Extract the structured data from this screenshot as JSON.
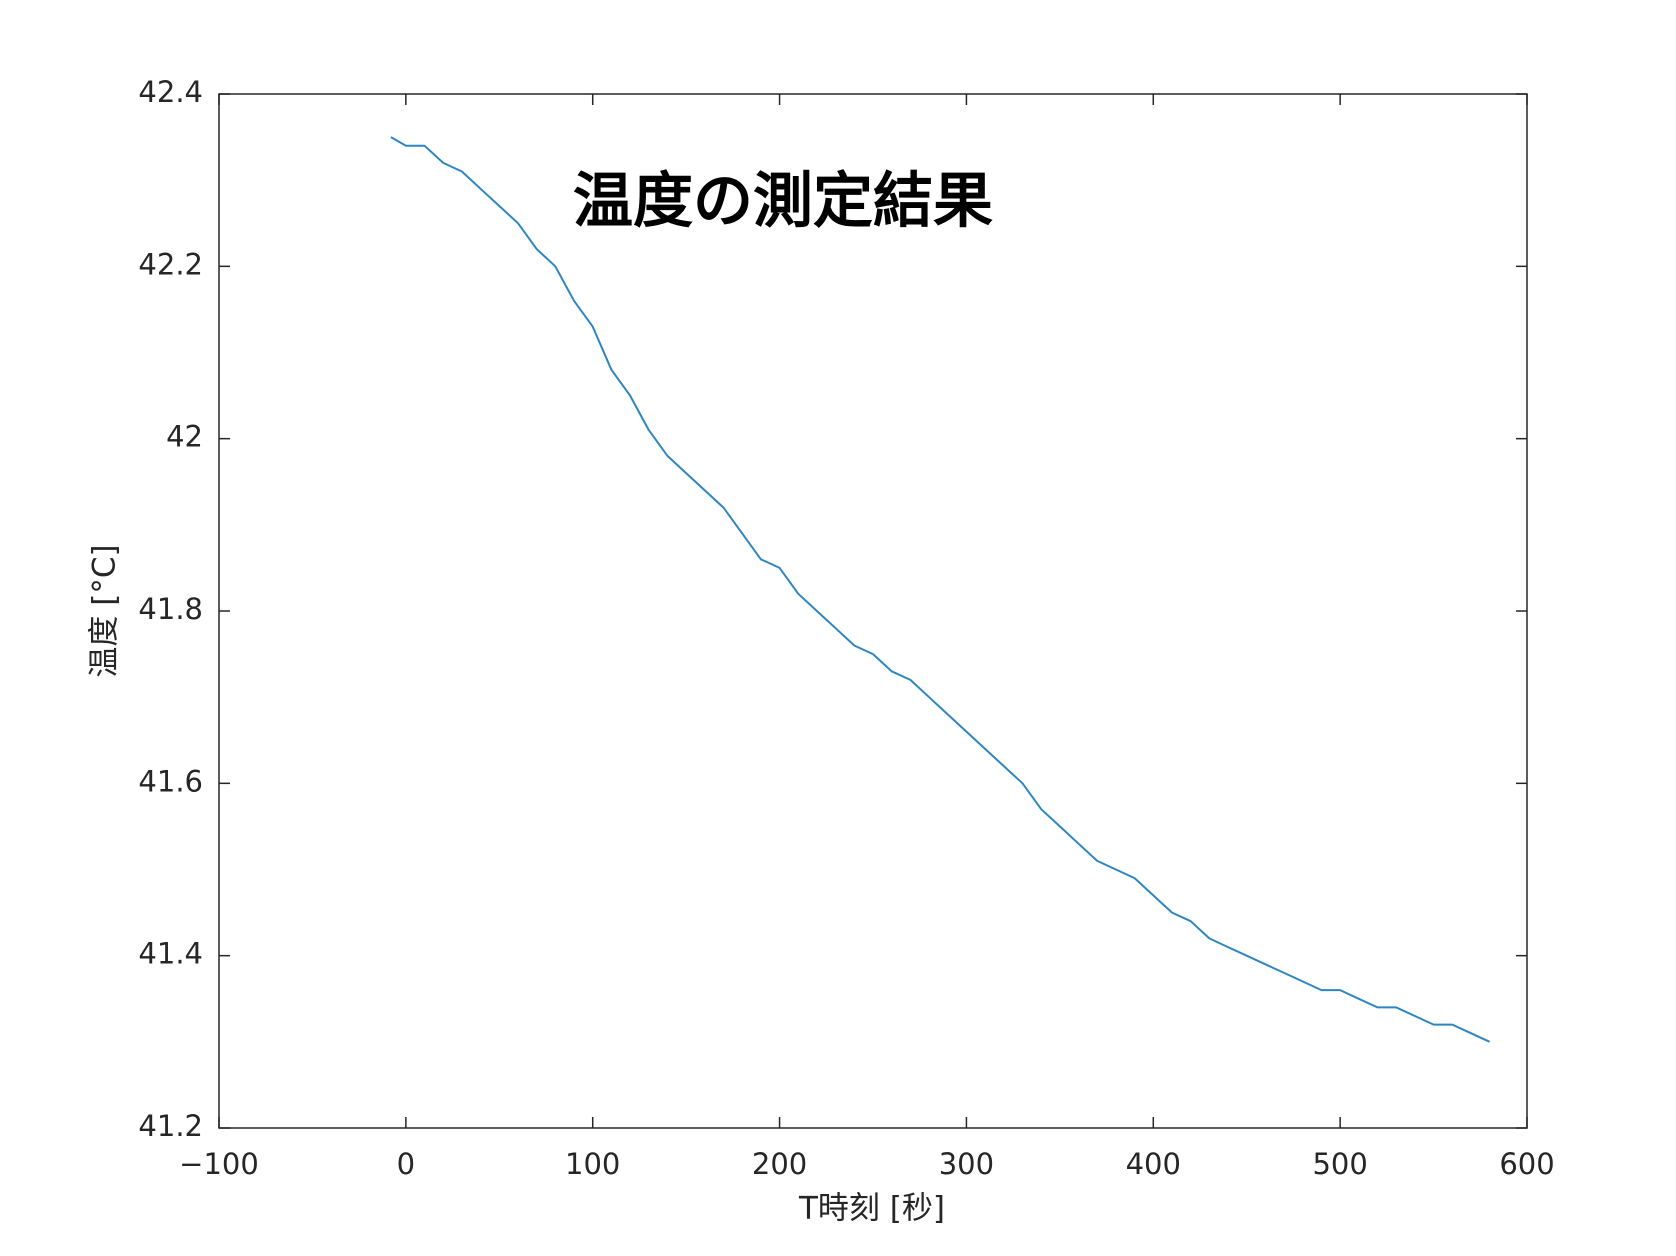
{
  "chart_data": {
    "type": "line",
    "title": "温度の測定結果",
    "xlabel": "T時刻 [秒]",
    "ylabel": "温度 [°C]",
    "x": [
      -8,
      0,
      10,
      20,
      30,
      40,
      50,
      60,
      70,
      80,
      90,
      100,
      110,
      120,
      130,
      140,
      150,
      160,
      170,
      180,
      190,
      200,
      210,
      220,
      230,
      240,
      250,
      260,
      270,
      280,
      290,
      300,
      310,
      320,
      330,
      340,
      350,
      360,
      370,
      380,
      390,
      400,
      410,
      420,
      430,
      440,
      450,
      460,
      470,
      480,
      490,
      500,
      510,
      520,
      530,
      540,
      550,
      560,
      570,
      580
    ],
    "series": [
      {
        "color": "#2e86c1",
        "values": [
          42.35,
          42.34,
          42.34,
          42.32,
          42.31,
          42.29,
          42.27,
          42.25,
          42.22,
          42.2,
          42.16,
          42.13,
          42.08,
          42.05,
          42.01,
          41.98,
          41.96,
          41.94,
          41.92,
          41.89,
          41.86,
          41.85,
          41.82,
          41.8,
          41.78,
          41.76,
          41.75,
          41.73,
          41.72,
          41.7,
          41.68,
          41.66,
          41.64,
          41.62,
          41.6,
          41.57,
          41.55,
          41.53,
          41.51,
          41.5,
          41.49,
          41.47,
          41.45,
          41.44,
          41.42,
          41.41,
          41.4,
          41.39,
          41.38,
          41.37,
          41.36,
          41.36,
          41.35,
          41.34,
          41.34,
          41.33,
          41.32,
          41.32,
          41.31,
          41.3
        ]
      }
    ],
    "xlim": [
      -100,
      600
    ],
    "xticks": [
      {
        "value": -100,
        "label": "−100"
      },
      0,
      100,
      200,
      300,
      400,
      500,
      600
    ],
    "ylim": [
      41.2,
      42.4
    ],
    "yticks": [
      41.2,
      41.4,
      41.6,
      41.8,
      42,
      42.2,
      42.4
    ]
  }
}
